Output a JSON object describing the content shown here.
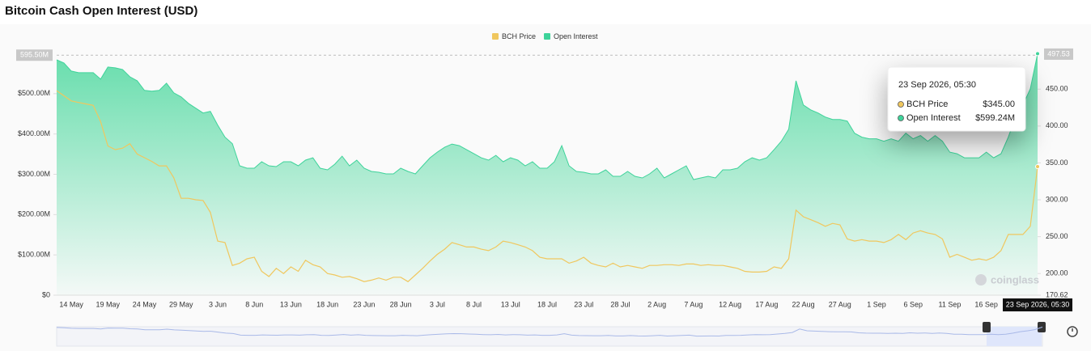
{
  "chart_data": {
    "type": "area-line",
    "title": "Bitcoin Cash Open Interest (USD)",
    "watermark": "coinglass",
    "legend": "top",
    "categories": [
      null,
      null,
      "14 May",
      null,
      null,
      null,
      null,
      "19 May",
      null,
      null,
      null,
      null,
      "24 May",
      null,
      null,
      null,
      null,
      "29 May",
      null,
      null,
      null,
      null,
      "3 Jun",
      null,
      null,
      null,
      null,
      "8 Jun",
      null,
      null,
      null,
      null,
      "13 Jun",
      null,
      null,
      null,
      null,
      "18 Jun",
      null,
      null,
      null,
      null,
      "23 Jun",
      null,
      null,
      null,
      null,
      "28 Jun",
      null,
      null,
      null,
      null,
      "3 Jul",
      null,
      null,
      null,
      null,
      "8 Jul",
      null,
      null,
      null,
      null,
      "13 Jul",
      null,
      null,
      null,
      null,
      "18 Jul",
      null,
      null,
      null,
      null,
      "23 Jul",
      null,
      null,
      null,
      null,
      "28 Jul",
      null,
      null,
      null,
      null,
      "2 Aug",
      null,
      null,
      null,
      null,
      "7 Aug",
      null,
      null,
      null,
      null,
      "12 Aug",
      null,
      null,
      null,
      null,
      "17 Aug",
      null,
      null,
      null,
      null,
      "22 Aug",
      null,
      null,
      null,
      null,
      "27 Aug",
      null,
      null,
      null,
      null,
      "1 Sep",
      null,
      null,
      null,
      null,
      "6 Sep",
      null,
      null,
      null,
      null,
      "11 Sep",
      null,
      null,
      null,
      null,
      "16 Sep",
      null,
      null,
      null,
      null,
      null,
      null,
      "23 Sep 2026, 05:30"
    ],
    "series": [
      {
        "name": "BCH Price",
        "color": "#f0c75e",
        "axis": "y2",
        "values": [
          448,
          441,
          434,
          432,
          430,
          428,
          406,
          373,
          368,
          370,
          376,
          362,
          357,
          352,
          346,
          346,
          330,
          302,
          302,
          300,
          299,
          283,
          244,
          242,
          211,
          214,
          220,
          222,
          203,
          196,
          207,
          200,
          209,
          203,
          218,
          212,
          209,
          200,
          198,
          195,
          196,
          193,
          189,
          191,
          194,
          191,
          195,
          195,
          189,
          198,
          207,
          217,
          226,
          233,
          242,
          239,
          236,
          236,
          233,
          231,
          236,
          244,
          242,
          239,
          236,
          231,
          222,
          220,
          220,
          220,
          214,
          217,
          222,
          214,
          211,
          209,
          214,
          209,
          211,
          209,
          207,
          211,
          211,
          212,
          212,
          211,
          213,
          213,
          211,
          212,
          211,
          211,
          209,
          207,
          203,
          202,
          202,
          203,
          209,
          207,
          220,
          286,
          277,
          273,
          269,
          264,
          268,
          266,
          247,
          244,
          246,
          244,
          244,
          242,
          246,
          253,
          246,
          255,
          258,
          255,
          253,
          247,
          222,
          226,
          222,
          218,
          220,
          218,
          222,
          231,
          253,
          253,
          253,
          264,
          345
        ]
      },
      {
        "name": "Open Interest",
        "color": "#3ed39a",
        "values": [
          584,
          576,
          556,
          552,
          552,
          552,
          536,
          566,
          564,
          560,
          542,
          532,
          508,
          506,
          508,
          526,
          502,
          492,
          476,
          464,
          452,
          456,
          422,
          392,
          376,
          321,
          315,
          315,
          331,
          321,
          319,
          331,
          331,
          321,
          335,
          341,
          315,
          311,
          325,
          345,
          321,
          335,
          315,
          307,
          305,
          301,
          301,
          315,
          307,
          301,
          321,
          341,
          355,
          367,
          375,
          371,
          361,
          351,
          341,
          335,
          347,
          331,
          341,
          335,
          321,
          331,
          315,
          315,
          331,
          371,
          321,
          307,
          305,
          301,
          301,
          311,
          295,
          295,
          307,
          295,
          291,
          301,
          315,
          291,
          301,
          311,
          321,
          287,
          291,
          295,
          291,
          311,
          311,
          315,
          331,
          341,
          335,
          341,
          361,
          382,
          412,
          532,
          472,
          460,
          452,
          442,
          436,
          436,
          432,
          402,
          392,
          388,
          388,
          382,
          388,
          382,
          402,
          388,
          396,
          382,
          396,
          382,
          355,
          351,
          341,
          341,
          341,
          355,
          341,
          351,
          392,
          442,
          472,
          512,
          599.24
        ]
      }
    ],
    "ylim": [
      0,
      610
    ],
    "yticks": [
      {
        "value": 0,
        "label": "$0"
      },
      {
        "value": 100,
        "label": "$100.00M"
      },
      {
        "value": 200,
        "label": "$200.00M"
      },
      {
        "value": 300,
        "label": "$300.00M"
      },
      {
        "value": 400,
        "label": "$400.00M"
      },
      {
        "value": 500,
        "label": "$500.00M"
      }
    ],
    "y2lim": [
      170.62,
      504
    ],
    "y2ticks": [
      170.62,
      {
        "value": 200,
        "label": "200.00"
      },
      {
        "value": 250,
        "label": "250.00"
      },
      {
        "value": 300,
        "label": "300.00"
      },
      {
        "value": 350,
        "label": "350.00"
      },
      {
        "value": 400,
        "label": "400.00"
      },
      {
        "value": 450,
        "label": "450.00"
      }
    ],
    "crosshair": {
      "y": {
        "value": 595.5,
        "label": "595.50M"
      },
      "y2": {
        "value": 497.53,
        "label": "497.53"
      }
    },
    "tooltip": {
      "title": "23 Sep 2026, 05:30",
      "items": [
        {
          "name": "BCH Price",
          "color": "#f0c75e",
          "value": 345,
          "label": "$345.00"
        },
        {
          "name": "Open Interest",
          "color": "#3ed39a",
          "value": 599.24,
          "label": "$599.24M"
        }
      ]
    }
  }
}
